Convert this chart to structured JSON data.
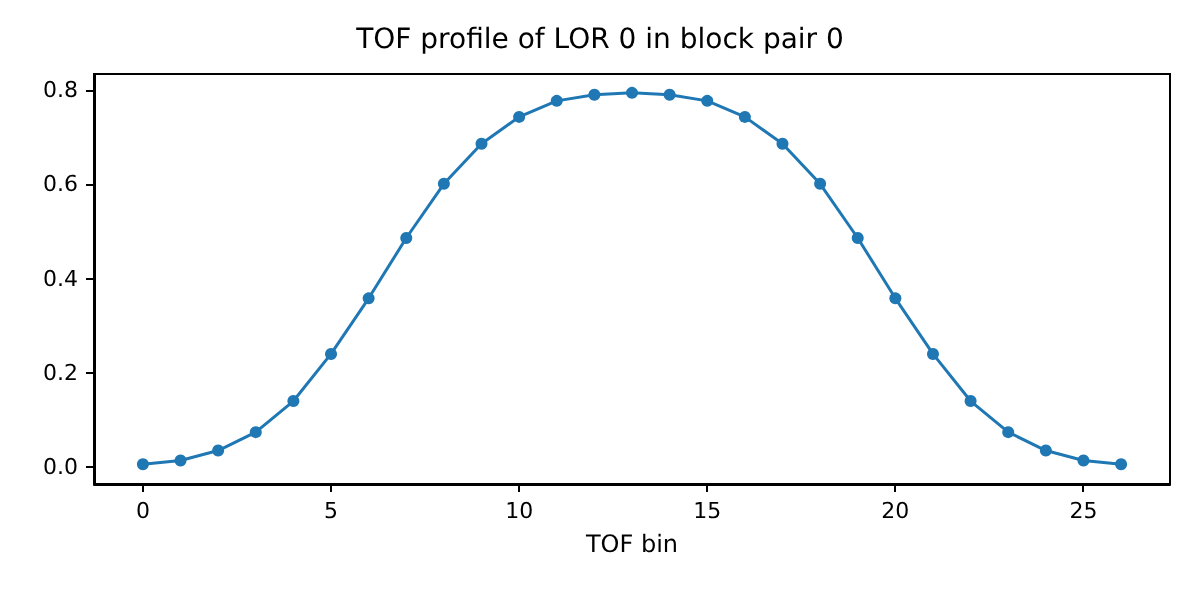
{
  "chart_data": {
    "type": "line",
    "title": "TOF profile of LOR 0 in block pair 0",
    "xlabel": "TOF bin",
    "x": [
      0,
      1,
      2,
      3,
      4,
      5,
      6,
      7,
      8,
      9,
      10,
      11,
      12,
      13,
      14,
      15,
      16,
      17,
      18,
      19,
      20,
      21,
      22,
      23,
      24,
      25,
      26
    ],
    "series": [
      {
        "color": "#1f77b4",
        "values": [
          0.006,
          0.014,
          0.035,
          0.074,
          0.14,
          0.24,
          0.358,
          0.486,
          0.601,
          0.686,
          0.743,
          0.777,
          0.79,
          0.794,
          0.79,
          0.777,
          0.743,
          0.686,
          0.601,
          0.486,
          0.358,
          0.24,
          0.14,
          0.074,
          0.035,
          0.014,
          0.006
        ]
      }
    ],
    "xlim": [
      -1.3,
      27.3
    ],
    "xticks": [
      0,
      5,
      10,
      15,
      20,
      25
    ],
    "ylim": [
      -0.036,
      0.834
    ],
    "yticks": [
      {
        "value": 0,
        "label": "0.0"
      },
      0.2,
      0.4,
      0.6,
      0.8
    ],
    "marker": "circle",
    "line_style": "solid",
    "grid": false
  }
}
